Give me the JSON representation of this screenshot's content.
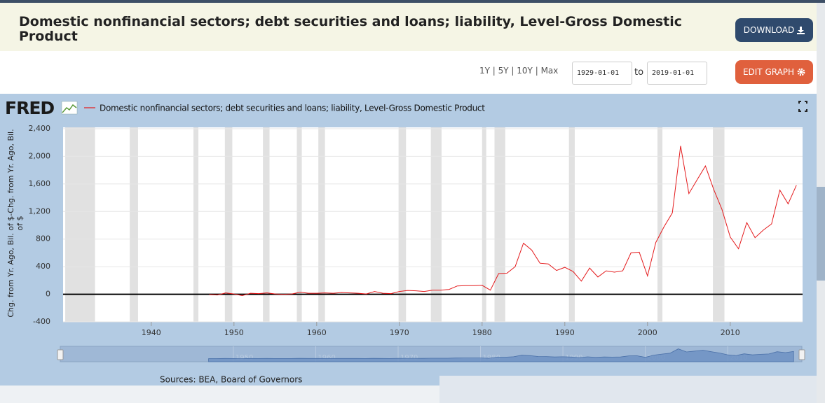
{
  "header": {
    "title": "Domestic nonfinancial sectors; debt securities and loans; liability, Level-Gross Domestic Product",
    "download_button": "DOWNLOAD"
  },
  "controls": {
    "ranges": [
      "1Y",
      "5Y",
      "10Y",
      "Max"
    ],
    "start_date": "1929-01-01",
    "to": "to",
    "end_date": "2019-01-01",
    "edit_button": "EDIT GRAPH"
  },
  "logo": "FRED",
  "sources": "Sources: BEA, Board of Governors",
  "chart_data": {
    "type": "line",
    "y_label": "Chg. from Yr. Ago, Bil. of $-Chg. from Yr. Ago, Bil. of $",
    "x": [
      1947,
      1948,
      1949,
      1950,
      1951,
      1952,
      1953,
      1954,
      1955,
      1956,
      1957,
      1958,
      1959,
      1960,
      1961,
      1962,
      1963,
      1964,
      1965,
      1966,
      1967,
      1968,
      1969,
      1970,
      1971,
      1972,
      1973,
      1974,
      1975,
      1976,
      1977,
      1978,
      1979,
      1980,
      1981,
      1982,
      1983,
      1984,
      1985,
      1986,
      1987,
      1988,
      1989,
      1990,
      1991,
      1992,
      1993,
      1994,
      1995,
      1996,
      1997,
      1998,
      1999,
      2000,
      2001,
      2002,
      2003,
      2004,
      2005,
      2006,
      2007,
      2008,
      2009,
      2010,
      2011,
      2012,
      2013,
      2014,
      2015,
      2016,
      2017,
      2018
    ],
    "series": [
      {
        "name": "Domestic nonfinancial sectors; debt securities and loans; liability, Level-Gross Domestic Product",
        "color": "#e41a1c",
        "values": [
          -5,
          -10,
          20,
          5,
          -20,
          15,
          10,
          20,
          5,
          0,
          5,
          30,
          15,
          15,
          20,
          15,
          25,
          20,
          15,
          5,
          40,
          15,
          10,
          40,
          55,
          50,
          40,
          60,
          60,
          70,
          120,
          125,
          125,
          130,
          60,
          300,
          305,
          400,
          740,
          640,
          450,
          440,
          345,
          390,
          330,
          190,
          380,
          250,
          340,
          320,
          340,
          600,
          610,
          265,
          750,
          980,
          1180,
          2150,
          1460,
          1660,
          1860,
          1520,
          1230,
          830,
          660,
          1040,
          820,
          930,
          1020,
          1510,
          1310,
          1580
        ]
      }
    ],
    "xlim": [
      1929,
      2019
    ],
    "xticks": [
      1940,
      1950,
      1960,
      1970,
      1980,
      1990,
      2000,
      2010
    ],
    "ylim": [
      -400,
      2400
    ],
    "yticks": [
      -400,
      0,
      400,
      {
        "value": 800,
        "label": "800"
      },
      {
        "value": 1200,
        "label": "1,200"
      },
      {
        "value": 1600,
        "label": "1,600"
      },
      {
        "value": 2000,
        "label": "2,000"
      },
      {
        "value": 2400,
        "label": "2,400"
      }
    ],
    "grid": true,
    "recessions": [
      [
        1929.6,
        1933.2
      ],
      [
        1937.4,
        1938.4
      ],
      [
        1945.1,
        1945.7
      ],
      [
        1948.9,
        1949.8
      ],
      [
        1953.5,
        1954.3
      ],
      [
        1957.6,
        1958.2
      ],
      [
        1960.2,
        1961.0
      ],
      [
        1969.9,
        1970.8
      ],
      [
        1973.8,
        1975.1
      ],
      [
        1980.0,
        1980.5
      ],
      [
        1981.5,
        1982.8
      ],
      [
        1990.5,
        1991.2
      ],
      [
        2001.2,
        2001.8
      ],
      [
        2007.9,
        2009.3
      ]
    ],
    "navigator_xticks": [
      1950,
      1960,
      1970,
      1980,
      1990,
      2000,
      2010
    ]
  }
}
